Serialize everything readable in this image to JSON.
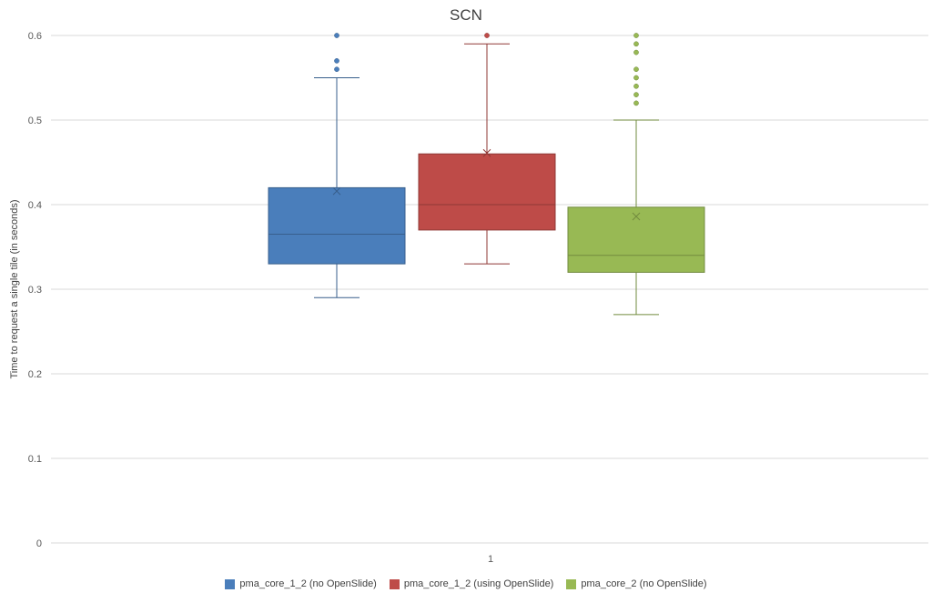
{
  "chart_data": {
    "type": "box",
    "title": "SCN",
    "ylabel": "Time to request a single tile (in seconds)",
    "xlabel": "",
    "categories": [
      "1"
    ],
    "ylim": [
      0,
      0.6
    ],
    "yticks": [
      "0",
      "0.1",
      "0.2",
      "0.3",
      "0.4",
      "0.5",
      "0.6"
    ],
    "grid": true,
    "legend_position": "bottom",
    "series": [
      {
        "name": "pma_core_1_2 (no OpenSlide)",
        "color": "#4a7ebb",
        "min": 0.29,
        "q1": 0.33,
        "median": 0.365,
        "q3": 0.42,
        "max": 0.55,
        "mean": 0.416,
        "outliers": [
          0.56,
          0.57,
          0.6
        ]
      },
      {
        "name": "pma_core_1_2 (using OpenSlide)",
        "color": "#be4b48",
        "min": 0.33,
        "q1": 0.37,
        "median": 0.4,
        "q3": 0.46,
        "max": 0.59,
        "mean": 0.461,
        "outliers": [
          0.6
        ]
      },
      {
        "name": "pma_core_2 (no OpenSlide)",
        "color": "#98b954",
        "min": 0.27,
        "q1": 0.32,
        "median": 0.34,
        "q3": 0.397,
        "max": 0.5,
        "mean": 0.386,
        "outliers": [
          0.52,
          0.53,
          0.54,
          0.55,
          0.56,
          0.58,
          0.59,
          0.6
        ]
      }
    ]
  }
}
